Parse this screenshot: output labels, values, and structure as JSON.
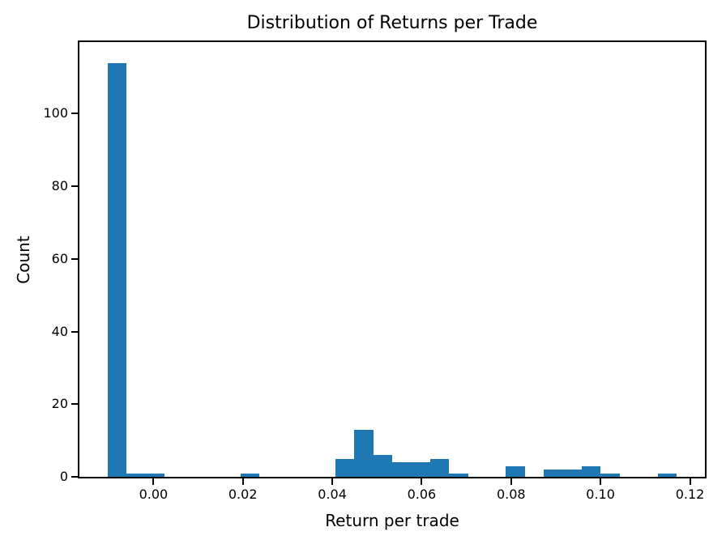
{
  "chart_data": {
    "type": "bar",
    "subtype": "histogram",
    "title": "Distribution of Returns per Trade",
    "xlabel": "Return per trade",
    "ylabel": "Count",
    "bar_color": "#1f77b4",
    "axis_color": "#000000",
    "background_color": "#ffffff",
    "grid": false,
    "legend": "none",
    "bin_start": -0.0102,
    "bin_width": 0.00424,
    "counts": [
      114,
      1,
      1,
      0,
      0,
      0,
      0,
      1,
      0,
      0,
      0,
      0,
      5,
      13,
      6,
      4,
      4,
      5,
      1,
      0,
      0,
      3,
      0,
      2,
      2,
      3,
      1,
      0,
      0,
      1
    ],
    "total_count": 167,
    "x_ticks": [
      0.0,
      0.02,
      0.04,
      0.06,
      0.08,
      0.1,
      0.12
    ],
    "x_tick_labels": [
      "0.00",
      "0.02",
      "0.04",
      "0.06",
      "0.08",
      "0.10",
      "0.12"
    ],
    "y_ticks": [
      0,
      20,
      40,
      60,
      80,
      100
    ],
    "y_tick_labels": [
      "0",
      "20",
      "40",
      "60",
      "80",
      "100"
    ],
    "xlim": [
      -0.01656,
      0.12336
    ],
    "ylim": [
      0,
      119.7
    ]
  }
}
